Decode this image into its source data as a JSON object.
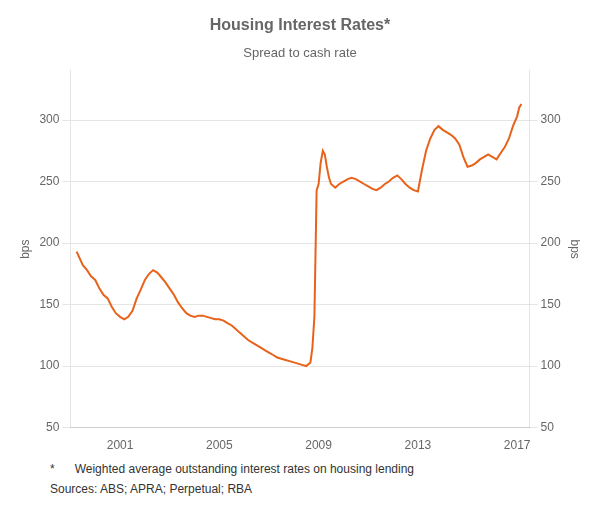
{
  "chart_data": {
    "type": "line",
    "title": "Housing Interest Rates*",
    "subtitle": "Spread to cash rate",
    "ylabel": "bps",
    "y2label": "bps",
    "annotations": [
      "*      Weighted average outstanding interest rates on housing lending",
      "Sources: ABS; APRA; Perpetual; RBA"
    ],
    "color": "#E8621A",
    "grid": "y",
    "xlim": [
      1999.0,
      2017.5
    ],
    "xticks": [
      2001,
      2005,
      2009,
      2013,
      2017
    ],
    "ylim": [
      50,
      340
    ],
    "yticks": [
      50,
      100,
      150,
      200,
      250,
      300
    ],
    "y2lim": [
      50,
      340
    ],
    "y2ticks": [
      50,
      100,
      150,
      200,
      250,
      300
    ],
    "x": [
      1999.25,
      1999.5,
      1999.67,
      1999.83,
      2000.0,
      2000.17,
      2000.33,
      2000.5,
      2000.67,
      2000.83,
      2001.0,
      2001.17,
      2001.33,
      2001.5,
      2001.67,
      2001.83,
      2002.0,
      2002.17,
      2002.33,
      2002.5,
      2002.67,
      2002.83,
      2003.0,
      2003.17,
      2003.33,
      2003.5,
      2003.67,
      2003.83,
      2004.0,
      2004.17,
      2004.33,
      2004.5,
      2004.67,
      2004.83,
      2005.0,
      2005.17,
      2005.33,
      2005.5,
      2005.67,
      2005.83,
      2006.0,
      2006.17,
      2006.33,
      2006.5,
      2006.67,
      2006.83,
      2007.0,
      2007.17,
      2007.33,
      2007.5,
      2007.67,
      2007.83,
      2008.0,
      2008.17,
      2008.33,
      2008.5,
      2008.67,
      2008.75,
      2008.83,
      2008.92,
      2009.0,
      2009.08,
      2009.17,
      2009.25,
      2009.33,
      2009.42,
      2009.5,
      2009.67,
      2009.83,
      2010.0,
      2010.17,
      2010.33,
      2010.5,
      2010.67,
      2010.83,
      2011.0,
      2011.17,
      2011.33,
      2011.5,
      2011.67,
      2011.83,
      2012.0,
      2012.17,
      2012.33,
      2012.5,
      2012.67,
      2012.83,
      2013.0,
      2013.17,
      2013.33,
      2013.5,
      2013.67,
      2013.83,
      2014.0,
      2014.17,
      2014.33,
      2014.5,
      2014.67,
      2014.83,
      2015.0,
      2015.17,
      2015.33,
      2015.5,
      2015.67,
      2015.83,
      2016.0,
      2016.17,
      2016.33,
      2016.5,
      2016.67,
      2016.83,
      2017.0,
      2017.08,
      2017.17
    ],
    "values": [
      193,
      182,
      178,
      173,
      170,
      163,
      158,
      155,
      148,
      143,
      140,
      138,
      140,
      145,
      155,
      162,
      170,
      175,
      178,
      176,
      172,
      168,
      163,
      158,
      152,
      147,
      143,
      141,
      140,
      141,
      141,
      140,
      139,
      138,
      138,
      137,
      135,
      133,
      130,
      127,
      124,
      121,
      119,
      117,
      115,
      113,
      111,
      109,
      107,
      106,
      105,
      104,
      103,
      102,
      101,
      100,
      103,
      115,
      140,
      243,
      248,
      265,
      275,
      272,
      262,
      253,
      248,
      245,
      248,
      250,
      252,
      253,
      252,
      250,
      248,
      246,
      244,
      243,
      245,
      248,
      250,
      253,
      255,
      252,
      248,
      245,
      243,
      242,
      260,
      275,
      285,
      292,
      295,
      292,
      290,
      288,
      285,
      280,
      270,
      262,
      263,
      265,
      268,
      270,
      272,
      270,
      268,
      273,
      278,
      285,
      295,
      303,
      310,
      313
    ]
  }
}
